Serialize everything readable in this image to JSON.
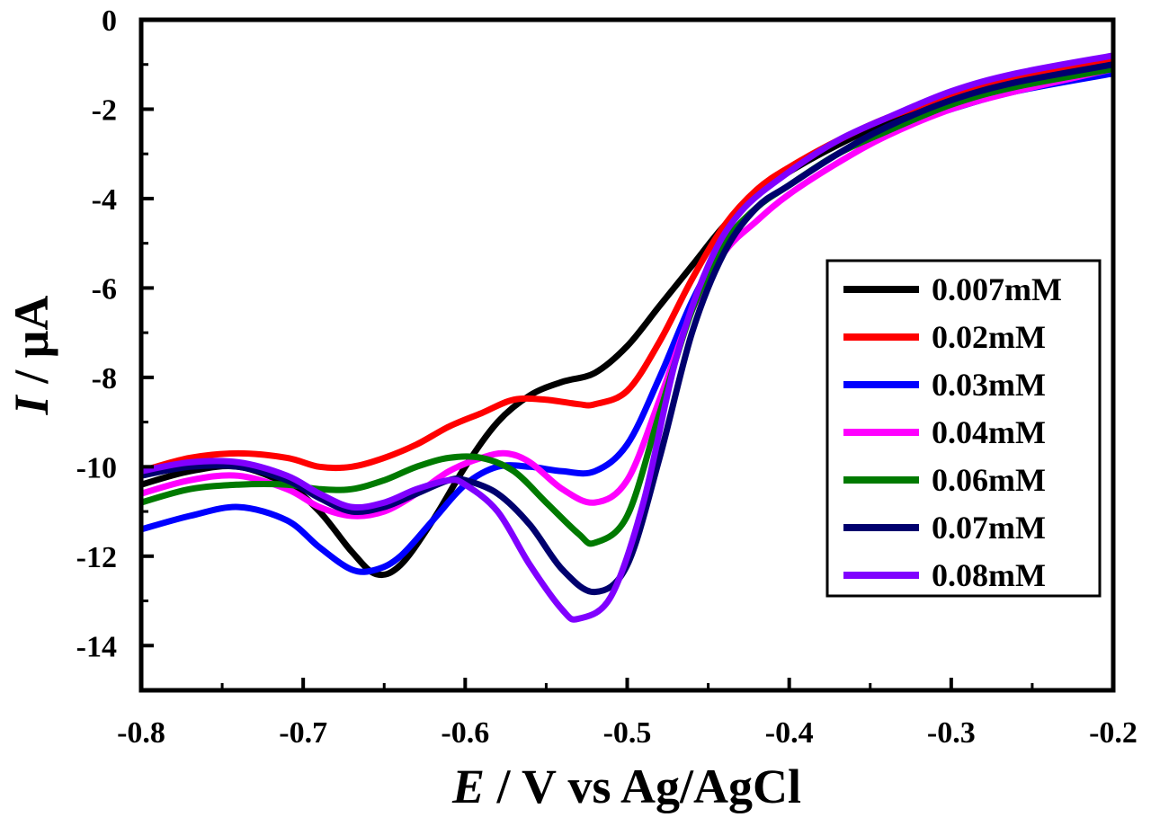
{
  "chart_data": {
    "type": "line",
    "xlabel": {
      "italic": "E",
      "rest": " / V vs Ag/AgCl"
    },
    "ylabel": {
      "italic": "I",
      "rest": " / μA"
    },
    "xlim": [
      -0.8,
      -0.2
    ],
    "ylim": [
      -15,
      0
    ],
    "x_ticks": [
      -0.8,
      -0.7,
      -0.6,
      -0.5,
      -0.4,
      -0.3,
      -0.2
    ],
    "x_tick_labels": [
      "-0.8",
      "-0.7",
      "-0.6",
      "-0.5",
      "-0.4",
      "-0.3",
      "-0.2"
    ],
    "y_ticks": [
      0,
      -2,
      -4,
      -6,
      -8,
      -10,
      -12,
      -14
    ],
    "y_tick_labels": [
      "0",
      "-2",
      "-4",
      "-6",
      "-8",
      "-10",
      "-12",
      "-14"
    ],
    "legend_position": "center-right",
    "series": [
      {
        "name": "0.007mM",
        "color": "#000000",
        "points": [
          [
            -0.8,
            -10.4
          ],
          [
            -0.77,
            -10.1
          ],
          [
            -0.74,
            -10.0
          ],
          [
            -0.71,
            -10.4
          ],
          [
            -0.69,
            -11.0
          ],
          [
            -0.67,
            -11.9
          ],
          [
            -0.655,
            -12.4
          ],
          [
            -0.64,
            -12.2
          ],
          [
            -0.62,
            -11.2
          ],
          [
            -0.6,
            -10.0
          ],
          [
            -0.58,
            -9.0
          ],
          [
            -0.56,
            -8.4
          ],
          [
            -0.54,
            -8.1
          ],
          [
            -0.52,
            -7.9
          ],
          [
            -0.5,
            -7.3
          ],
          [
            -0.48,
            -6.4
          ],
          [
            -0.46,
            -5.5
          ],
          [
            -0.44,
            -4.6
          ],
          [
            -0.42,
            -3.9
          ],
          [
            -0.4,
            -3.4
          ],
          [
            -0.37,
            -2.8
          ],
          [
            -0.34,
            -2.3
          ],
          [
            -0.3,
            -1.8
          ],
          [
            -0.26,
            -1.4
          ],
          [
            -0.2,
            -1.0
          ]
        ]
      },
      {
        "name": "0.02mM",
        "color": "#ff0000",
        "points": [
          [
            -0.8,
            -10.1
          ],
          [
            -0.77,
            -9.8
          ],
          [
            -0.74,
            -9.7
          ],
          [
            -0.71,
            -9.8
          ],
          [
            -0.69,
            -10.0
          ],
          [
            -0.67,
            -10.0
          ],
          [
            -0.65,
            -9.8
          ],
          [
            -0.63,
            -9.5
          ],
          [
            -0.61,
            -9.1
          ],
          [
            -0.59,
            -8.8
          ],
          [
            -0.57,
            -8.5
          ],
          [
            -0.55,
            -8.5
          ],
          [
            -0.53,
            -8.6
          ],
          [
            -0.52,
            -8.6
          ],
          [
            -0.5,
            -8.3
          ],
          [
            -0.48,
            -7.2
          ],
          [
            -0.46,
            -5.8
          ],
          [
            -0.44,
            -4.6
          ],
          [
            -0.42,
            -3.8
          ],
          [
            -0.4,
            -3.3
          ],
          [
            -0.37,
            -2.7
          ],
          [
            -0.34,
            -2.2
          ],
          [
            -0.3,
            -1.7
          ],
          [
            -0.26,
            -1.3
          ],
          [
            -0.2,
            -0.9
          ]
        ]
      },
      {
        "name": "0.03mM",
        "color": "#0000ff",
        "points": [
          [
            -0.8,
            -11.4
          ],
          [
            -0.77,
            -11.1
          ],
          [
            -0.74,
            -10.9
          ],
          [
            -0.71,
            -11.2
          ],
          [
            -0.69,
            -11.8
          ],
          [
            -0.67,
            -12.3
          ],
          [
            -0.655,
            -12.3
          ],
          [
            -0.64,
            -12.0
          ],
          [
            -0.62,
            -11.2
          ],
          [
            -0.6,
            -10.4
          ],
          [
            -0.58,
            -10.0
          ],
          [
            -0.56,
            -10.0
          ],
          [
            -0.54,
            -10.1
          ],
          [
            -0.52,
            -10.1
          ],
          [
            -0.5,
            -9.5
          ],
          [
            -0.48,
            -8.0
          ],
          [
            -0.46,
            -6.3
          ],
          [
            -0.44,
            -5.0
          ],
          [
            -0.42,
            -4.2
          ],
          [
            -0.4,
            -3.7
          ],
          [
            -0.37,
            -3.0
          ],
          [
            -0.34,
            -2.5
          ],
          [
            -0.3,
            -2.0
          ],
          [
            -0.26,
            -1.6
          ],
          [
            -0.2,
            -1.2
          ]
        ]
      },
      {
        "name": "0.04mM",
        "color": "#ff00ff",
        "points": [
          [
            -0.8,
            -10.6
          ],
          [
            -0.77,
            -10.3
          ],
          [
            -0.74,
            -10.2
          ],
          [
            -0.71,
            -10.5
          ],
          [
            -0.69,
            -10.9
          ],
          [
            -0.67,
            -11.1
          ],
          [
            -0.65,
            -11.0
          ],
          [
            -0.63,
            -10.6
          ],
          [
            -0.61,
            -10.1
          ],
          [
            -0.59,
            -9.8
          ],
          [
            -0.575,
            -9.7
          ],
          [
            -0.56,
            -9.9
          ],
          [
            -0.54,
            -10.5
          ],
          [
            -0.52,
            -10.8
          ],
          [
            -0.5,
            -10.3
          ],
          [
            -0.48,
            -8.5
          ],
          [
            -0.46,
            -6.5
          ],
          [
            -0.44,
            -5.2
          ],
          [
            -0.42,
            -4.5
          ],
          [
            -0.4,
            -3.9
          ],
          [
            -0.37,
            -3.2
          ],
          [
            -0.34,
            -2.6
          ],
          [
            -0.3,
            -2.0
          ],
          [
            -0.26,
            -1.6
          ],
          [
            -0.2,
            -1.1
          ]
        ]
      },
      {
        "name": "0.06mM",
        "color": "#007a00",
        "points": [
          [
            -0.8,
            -10.8
          ],
          [
            -0.77,
            -10.5
          ],
          [
            -0.74,
            -10.4
          ],
          [
            -0.71,
            -10.4
          ],
          [
            -0.69,
            -10.5
          ],
          [
            -0.67,
            -10.5
          ],
          [
            -0.65,
            -10.3
          ],
          [
            -0.63,
            -10.0
          ],
          [
            -0.61,
            -9.8
          ],
          [
            -0.59,
            -9.8
          ],
          [
            -0.57,
            -10.1
          ],
          [
            -0.55,
            -10.8
          ],
          [
            -0.53,
            -11.5
          ],
          [
            -0.52,
            -11.7
          ],
          [
            -0.5,
            -11.1
          ],
          [
            -0.48,
            -8.8
          ],
          [
            -0.46,
            -6.5
          ],
          [
            -0.44,
            -5.0
          ],
          [
            -0.42,
            -4.2
          ],
          [
            -0.4,
            -3.7
          ],
          [
            -0.37,
            -3.0
          ],
          [
            -0.34,
            -2.5
          ],
          [
            -0.3,
            -1.9
          ],
          [
            -0.26,
            -1.5
          ],
          [
            -0.2,
            -1.1
          ]
        ]
      },
      {
        "name": "0.07mM",
        "color": "#00006e",
        "points": [
          [
            -0.8,
            -10.2
          ],
          [
            -0.77,
            -10.0
          ],
          [
            -0.74,
            -10.0
          ],
          [
            -0.71,
            -10.3
          ],
          [
            -0.69,
            -10.7
          ],
          [
            -0.67,
            -11.0
          ],
          [
            -0.65,
            -10.9
          ],
          [
            -0.63,
            -10.6
          ],
          [
            -0.61,
            -10.3
          ],
          [
            -0.6,
            -10.3
          ],
          [
            -0.58,
            -10.6
          ],
          [
            -0.56,
            -11.3
          ],
          [
            -0.54,
            -12.3
          ],
          [
            -0.52,
            -12.8
          ],
          [
            -0.5,
            -12.2
          ],
          [
            -0.48,
            -9.8
          ],
          [
            -0.46,
            -7.0
          ],
          [
            -0.44,
            -5.2
          ],
          [
            -0.42,
            -4.2
          ],
          [
            -0.4,
            -3.7
          ],
          [
            -0.37,
            -3.0
          ],
          [
            -0.34,
            -2.4
          ],
          [
            -0.3,
            -1.8
          ],
          [
            -0.26,
            -1.4
          ],
          [
            -0.2,
            -1.0
          ]
        ]
      },
      {
        "name": "0.08mM",
        "color": "#8000ff",
        "points": [
          [
            -0.8,
            -10.1
          ],
          [
            -0.77,
            -9.9
          ],
          [
            -0.74,
            -9.9
          ],
          [
            -0.71,
            -10.2
          ],
          [
            -0.69,
            -10.6
          ],
          [
            -0.67,
            -10.9
          ],
          [
            -0.65,
            -10.8
          ],
          [
            -0.63,
            -10.5
          ],
          [
            -0.61,
            -10.3
          ],
          [
            -0.6,
            -10.4
          ],
          [
            -0.58,
            -11.0
          ],
          [
            -0.56,
            -12.2
          ],
          [
            -0.54,
            -13.2
          ],
          [
            -0.53,
            -13.4
          ],
          [
            -0.51,
            -12.9
          ],
          [
            -0.49,
            -10.8
          ],
          [
            -0.47,
            -7.6
          ],
          [
            -0.45,
            -5.5
          ],
          [
            -0.43,
            -4.3
          ],
          [
            -0.4,
            -3.4
          ],
          [
            -0.37,
            -2.7
          ],
          [
            -0.34,
            -2.2
          ],
          [
            -0.3,
            -1.6
          ],
          [
            -0.26,
            -1.2
          ],
          [
            -0.2,
            -0.8
          ]
        ]
      }
    ]
  }
}
